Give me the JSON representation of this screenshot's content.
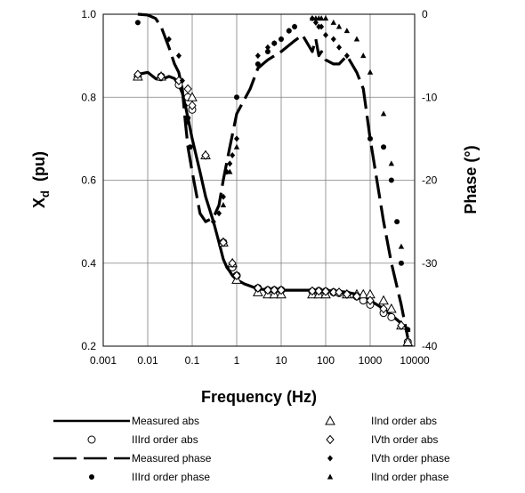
{
  "chart_data": {
    "type": "line",
    "xlabel": "Frequency (Hz)",
    "ylabel_left": "Xd (pu)",
    "ylabel_left_main": "X",
    "ylabel_left_sub": "d",
    "ylabel_left_rest": "  (pu)",
    "ylabel_right": "Phase (°)",
    "x_scale": "log",
    "xlim": [
      0.001,
      10000
    ],
    "ylim_left": [
      0.2,
      1.0
    ],
    "ylim_right": [
      -40,
      0
    ],
    "x_ticks": [
      0.001,
      0.01,
      0.1,
      1,
      10,
      100,
      1000,
      10000
    ],
    "x_tick_labels": [
      "0.001",
      "0.01",
      "0.1",
      "1",
      "10",
      "100",
      "1000",
      "10000"
    ],
    "y_left_ticks": [
      0.2,
      0.4,
      0.6,
      0.8,
      1.0
    ],
    "y_left_tick_labels": [
      "0.2",
      "0.4",
      "0.6",
      "0.8",
      "1.0"
    ],
    "y_right_ticks": [
      -40,
      -30,
      -20,
      -10,
      0
    ],
    "y_right_tick_labels": [
      "-40",
      "-30",
      "-20",
      "-10",
      "0"
    ],
    "grid": true,
    "legend_position": "bottom",
    "series": [
      {
        "name": "Measured abs",
        "axis": "left",
        "style": "solid",
        "x": [
          0.006,
          0.01,
          0.015,
          0.02,
          0.03,
          0.04,
          0.05,
          0.06,
          0.07,
          0.08,
          0.1,
          0.15,
          0.2,
          0.3,
          0.4,
          0.5,
          0.6,
          0.7,
          0.8,
          1,
          1.5,
          2,
          3,
          5,
          10,
          20,
          50,
          100,
          200,
          300,
          500,
          1000,
          2000,
          3000,
          5000,
          7000
        ],
        "y": [
          0.855,
          0.86,
          0.845,
          0.842,
          0.85,
          0.845,
          0.83,
          0.81,
          0.78,
          0.75,
          0.7,
          0.62,
          0.56,
          0.5,
          0.45,
          0.41,
          0.39,
          0.38,
          0.37,
          0.36,
          0.35,
          0.345,
          0.338,
          0.336,
          0.335,
          0.335,
          0.335,
          0.334,
          0.332,
          0.33,
          0.325,
          0.31,
          0.29,
          0.275,
          0.255,
          0.235
        ]
      },
      {
        "name": "Measured phase",
        "axis": "right",
        "style": "dashed",
        "x": [
          0.006,
          0.01,
          0.015,
          0.02,
          0.03,
          0.04,
          0.05,
          0.06,
          0.07,
          0.08,
          0.1,
          0.15,
          0.2,
          0.3,
          0.4,
          0.5,
          0.7,
          1,
          2,
          3,
          5,
          10,
          20,
          30,
          50,
          60,
          70,
          80,
          100,
          150,
          200,
          300,
          500,
          700,
          1000,
          2000,
          3000,
          5000,
          7000
        ],
        "y": [
          0,
          -0.1,
          -0.5,
          -1.5,
          -4,
          -6,
          -7,
          -9,
          -13,
          -16,
          -19,
          -24,
          -25,
          -24.5,
          -23,
          -20,
          -16,
          -12,
          -9,
          -6.5,
          -5.5,
          -4.5,
          -3.2,
          -2.5,
          -4.5,
          -3,
          -5,
          -4.5,
          -5.5,
          -6,
          -6,
          -5,
          -7,
          -9,
          -15,
          -25,
          -30,
          -35,
          -39
        ]
      },
      {
        "name": "IIIrd order abs",
        "axis": "left",
        "marker": "circle-open",
        "x": [
          0.006,
          0.02,
          0.05,
          0.08,
          0.1,
          0.5,
          0.8,
          1,
          3,
          5,
          7,
          10,
          50,
          70,
          100,
          150,
          200,
          300,
          500,
          700,
          1000,
          2000,
          3000,
          7000
        ],
        "y": [
          0.85,
          0.85,
          0.83,
          0.8,
          0.77,
          0.45,
          0.39,
          0.37,
          0.34,
          0.335,
          0.335,
          0.335,
          0.332,
          0.333,
          0.332,
          0.33,
          0.328,
          0.325,
          0.32,
          0.31,
          0.3,
          0.28,
          0.27,
          0.21
        ]
      },
      {
        "name": "IIIrd order phase",
        "axis": "right",
        "marker": "circle-filled",
        "x": [
          0.006,
          0.08,
          0.09,
          1,
          3,
          5,
          7,
          10,
          15,
          20,
          1000,
          2000,
          3000,
          4000,
          5000,
          7000
        ],
        "y": [
          -1,
          -12.5,
          -16,
          -10,
          -6,
          -4.5,
          -3.5,
          -3,
          -2,
          -1.5,
          -15,
          -16,
          -20,
          -25,
          -30,
          -38
        ]
      },
      {
        "name": "IInd order abs",
        "axis": "left",
        "marker": "triangle-open",
        "x": [
          0.006,
          0.02,
          0.1,
          0.2,
          0.5,
          0.8,
          1,
          3,
          5,
          7,
          10,
          50,
          70,
          100,
          300,
          500,
          700,
          1000,
          2000,
          3000,
          5000,
          7000
        ],
        "y": [
          0.85,
          0.85,
          0.8,
          0.66,
          0.45,
          0.4,
          0.36,
          0.33,
          0.325,
          0.325,
          0.325,
          0.325,
          0.325,
          0.325,
          0.325,
          0.325,
          0.325,
          0.325,
          0.31,
          0.29,
          0.25,
          0.21
        ]
      },
      {
        "name": "IVth order abs",
        "axis": "left",
        "marker": "diamond-open",
        "x": [
          0.006,
          0.02,
          0.05,
          0.08,
          0.1,
          0.2,
          0.5,
          0.8,
          1,
          3,
          5,
          7,
          10,
          50,
          70,
          100,
          150,
          200,
          300,
          500,
          1000,
          2000,
          5000
        ],
        "y": [
          0.855,
          0.85,
          0.84,
          0.82,
          0.78,
          0.66,
          0.45,
          0.4,
          0.37,
          0.34,
          0.335,
          0.335,
          0.335,
          0.333,
          0.333,
          0.332,
          0.33,
          0.33,
          0.325,
          0.32,
          0.31,
          0.29,
          0.25
        ]
      },
      {
        "name": "IVth order phase",
        "axis": "right",
        "marker": "diamond-filled",
        "x": [
          0.03,
          0.05,
          0.06,
          0.07,
          0.08,
          0.3,
          0.4,
          0.5,
          0.6,
          0.7,
          0.8,
          1,
          3,
          5,
          7,
          10,
          15,
          20,
          50,
          60,
          70,
          80,
          100,
          150,
          200,
          300
        ],
        "y": [
          -3,
          -5,
          -8,
          -11,
          -13,
          -25,
          -24,
          -22,
          -19,
          -18,
          -17,
          -15,
          -5,
          -4,
          -3.5,
          -3,
          -2,
          -1.5,
          -0.5,
          -1,
          -1.5,
          -1.5,
          -2.5,
          -3,
          -4,
          -5
        ]
      },
      {
        "name": "IInd order phase",
        "axis": "right",
        "marker": "triangle-filled",
        "x": [
          0.5,
          0.7,
          1,
          50,
          60,
          70,
          80,
          100,
          150,
          200,
          300,
          500,
          700,
          1000,
          2000,
          3000,
          5000,
          7000
        ],
        "y": [
          -23,
          -19,
          -16,
          -0.5,
          -0.5,
          -0.5,
          -0.5,
          -0.5,
          -1,
          -1.5,
          -2,
          -3,
          -5,
          -7,
          -12,
          -18,
          -28,
          -38
        ]
      }
    ]
  }
}
